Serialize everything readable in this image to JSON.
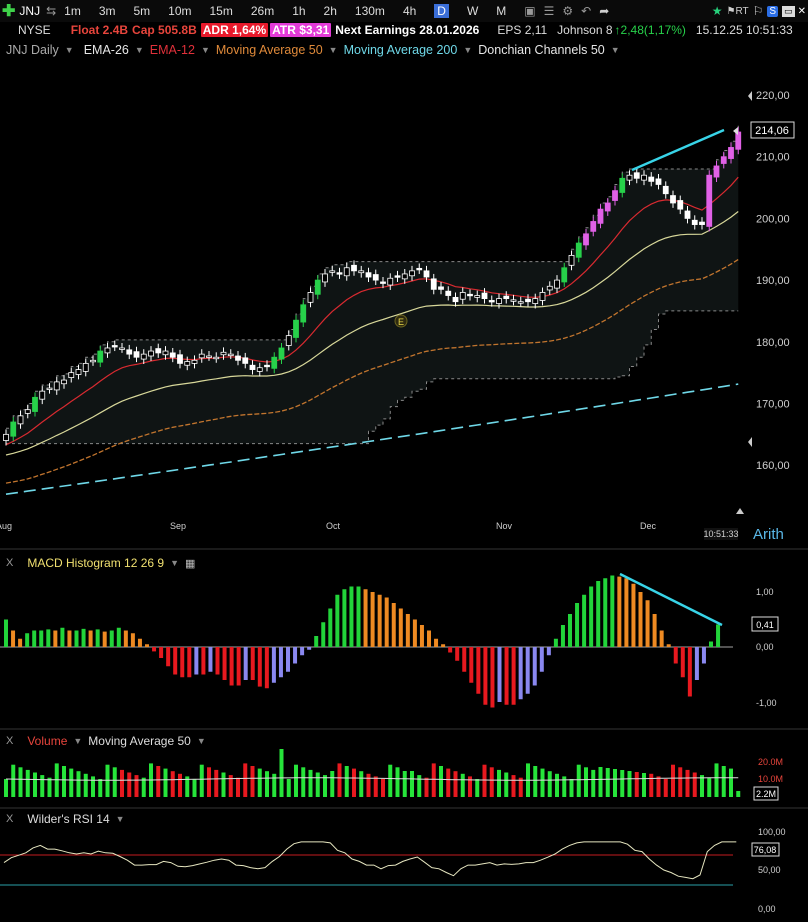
{
  "toolbar": {
    "symbol": "JNJ",
    "timeframes": [
      "1m",
      "3m",
      "5m",
      "10m",
      "15m",
      "26m",
      "1h",
      "2h",
      "130m",
      "4h",
      "D",
      "W",
      "M"
    ],
    "active_timeframe": "D",
    "float": "Float 2.4B",
    "cap": "Cap 505.8B",
    "adr": "ADR  1,64%",
    "atr": "ATR $3,31",
    "next_earnings": "Next Earnings 28.01.2026",
    "eps": "EPS 2,11",
    "name": "Johnson 8",
    "change": "2,48(1,17%)",
    "datetime": "15.12.25 10:51:33"
  },
  "subbar": {
    "exchange": "NYSE",
    "chart_label": "JNJ Daily",
    "indicators": [
      "EMA-26",
      "EMA-12",
      "Moving Average 50",
      "Moving Average 200",
      "Donchian Channels 50"
    ],
    "colors": {
      "ema26": "#e6e6e6",
      "ema12": "#e0303a",
      "ma50": "#e08a3a",
      "ma200": "#6fd8e8",
      "donchian": "#e6e6e6"
    }
  },
  "price_axis": {
    "ticks": [
      "220,00",
      "210,00",
      "200,00",
      "190,00",
      "180,00",
      "170,00",
      "160,00"
    ],
    "current": "214,06",
    "scale_label": "Arith"
  },
  "time_axis": {
    "labels": [
      "Aug",
      "Sep",
      "Oct",
      "Nov",
      "Dec"
    ],
    "time": "10:51:33"
  },
  "earnings_marker": "E",
  "macd": {
    "title": "MACD Histogram 12 26 9",
    "ticks": [
      "1,00",
      "0,00",
      "-1,00"
    ],
    "current": "0,41",
    "values": [
      0.5,
      0.3,
      0.15,
      0.25,
      0.3,
      0.3,
      0.32,
      0.3,
      0.35,
      0.3,
      0.3,
      0.33,
      0.3,
      0.32,
      0.28,
      0.3,
      0.35,
      0.3,
      0.25,
      0.15,
      0.05,
      -0.08,
      -0.2,
      -0.35,
      -0.5,
      -0.55,
      -0.55,
      -0.5,
      -0.5,
      -0.45,
      -0.5,
      -0.6,
      -0.7,
      -0.7,
      -0.6,
      -0.6,
      -0.72,
      -0.75,
      -0.65,
      -0.55,
      -0.45,
      -0.3,
      -0.15,
      -0.05,
      0.2,
      0.45,
      0.7,
      0.95,
      1.05,
      1.1,
      1.1,
      1.05,
      1.0,
      0.95,
      0.9,
      0.8,
      0.7,
      0.6,
      0.5,
      0.4,
      0.3,
      0.15,
      0.05,
      -0.1,
      -0.25,
      -0.45,
      -0.65,
      -0.85,
      -1.05,
      -1.1,
      -1.0,
      -1.05,
      -1.05,
      -0.95,
      -0.85,
      -0.7,
      -0.45,
      -0.15,
      0.15,
      0.4,
      0.6,
      0.8,
      0.95,
      1.1,
      1.2,
      1.25,
      1.3,
      1.28,
      1.25,
      1.15,
      1.0,
      0.85,
      0.6,
      0.3,
      0.05,
      -0.3,
      -0.55,
      -0.9,
      -0.6,
      -0.3,
      0.1,
      0.41
    ]
  },
  "volume": {
    "title": "Volume",
    "ma_title": "Moving Average 50",
    "ticks": [
      "20.0M",
      "10.0M"
    ],
    "current": "2.2M"
  },
  "rsi": {
    "title": "Wilder's RSI 14",
    "ticks": [
      "100,00",
      "50,00",
      "0,00"
    ],
    "current": "76,08"
  },
  "price_data": {
    "closes": [
      165,
      167,
      168,
      169,
      171,
      172,
      172.5,
      173.5,
      173.8,
      175,
      175.5,
      176.5,
      177,
      178.5,
      179,
      179.3,
      179,
      178,
      177.5,
      178,
      178.5,
      178.2,
      178.5,
      177.5,
      176.5,
      176.8,
      177,
      178,
      177.7,
      177.5,
      178.3,
      178,
      177,
      176.5,
      175.5,
      175.8,
      176,
      177.5,
      179,
      181,
      183.5,
      186,
      188,
      190,
      191,
      191.5,
      191,
      192,
      191.5,
      191.5,
      190.5,
      190,
      189.5,
      190.3,
      190.5,
      191,
      191.5,
      191.8,
      190.5,
      188.5,
      188.5,
      187.5,
      186.5,
      188,
      187.5,
      187.5,
      187,
      186.5,
      187,
      187,
      186.8,
      186.5,
      186.5,
      187,
      188,
      189,
      190,
      192,
      194,
      196,
      197.5,
      199.5,
      201.5,
      202.5,
      204.5,
      206.5,
      207,
      206.5,
      207,
      206,
      205.5,
      204,
      202.5,
      201.5,
      200,
      199,
      199,
      207,
      208.5,
      210,
      211.5,
      214
    ]
  }
}
